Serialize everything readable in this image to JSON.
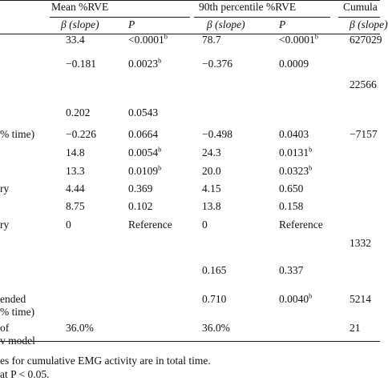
{
  "headers": {
    "group1": "Mean %RVE",
    "group2": "90th percentile %RVE",
    "group3": "Cumula",
    "beta_label": "β (slope)",
    "p_label": "P",
    "beta_partial": "β (slope)"
  },
  "rows": [
    {
      "label": "",
      "b1": "33.4",
      "p1": "<0.0001",
      "p1_sup": "b",
      "b2": "78.7",
      "p2": "<0.0001",
      "p2_sup": "b",
      "c3": "627029"
    },
    {
      "label": "",
      "b1": "−0.181",
      "p1": "0.0023",
      "p1_sup": "b",
      "b2": "−0.376",
      "p2": "0.0009",
      "p2_sup": "",
      "c3": ""
    },
    {
      "label": "",
      "b1": "",
      "p1": "",
      "p1_sup": "",
      "b2": "",
      "p2": "",
      "p2_sup": "",
      "c3": "22566"
    },
    {
      "label": "",
      "b1": "0.202",
      "p1": "0.0543",
      "p1_sup": "",
      "b2": "",
      "p2": "",
      "p2_sup": "",
      "c3": ""
    },
    {
      "label": "% time)",
      "b1": "−0.226",
      "p1": "0.0664",
      "p1_sup": "",
      "b2": "−0.498",
      "p2": "0.0403",
      "p2_sup": "",
      "c3": "−7157"
    },
    {
      "label": "",
      "b1": "14.8",
      "p1": "0.0054",
      "p1_sup": "b",
      "b2": "24.3",
      "p2": "0.0131",
      "p2_sup": "b",
      "c3": ""
    },
    {
      "label": "",
      "b1": "13.3",
      "p1": "0.0109",
      "p1_sup": "b",
      "b2": "20.0",
      "p2": "0.0323",
      "p2_sup": "b",
      "c3": ""
    },
    {
      "label": "ry",
      "b1": "4.44",
      "p1": "0.369",
      "p1_sup": "",
      "b2": "4.15",
      "p2": "0.650",
      "p2_sup": "",
      "c3": ""
    },
    {
      "label": "",
      "b1": "8.75",
      "p1": "0.102",
      "p1_sup": "",
      "b2": "13.8",
      "p2": "0.158",
      "p2_sup": "",
      "c3": ""
    },
    {
      "label": "ry",
      "b1": "0",
      "p1": "Reference",
      "p1_sup": "",
      "b2": "0",
      "p2": "Reference",
      "p2_sup": "",
      "c3": ""
    },
    {
      "label": "",
      "b1": "",
      "p1": "",
      "p1_sup": "",
      "b2": "",
      "p2": "",
      "p2_sup": "",
      "c3": "1332"
    },
    {
      "label": "",
      "b1": "",
      "p1": "",
      "p1_sup": "",
      "b2": "0.165",
      "p2": "0.337",
      "p2_sup": "",
      "c3": ""
    },
    {
      "label": "ended",
      "b1": "",
      "p1": "",
      "p1_sup": "",
      "b2": "0.710",
      "p2": "0.0040",
      "p2_sup": "b",
      "c3": "5214"
    },
    {
      "label": "% time)",
      "b1": "",
      "p1": "",
      "p1_sup": "",
      "b2": "",
      "p2": "",
      "p2_sup": "",
      "c3": ""
    },
    {
      "label": "of",
      "b1": "36.0%",
      "p1": "",
      "p1_sup": "",
      "b2": "36.0%",
      "p2": "",
      "p2_sup": "",
      "c3": "21"
    },
    {
      "label": "v model",
      "b1": "",
      "p1": "",
      "p1_sup": "",
      "b2": "",
      "p2": "",
      "p2_sup": "",
      "c3": ""
    }
  ],
  "footnotes": {
    "a": "es for cumulative EMG activity are in total time.",
    "b": "at P < 0.05."
  }
}
